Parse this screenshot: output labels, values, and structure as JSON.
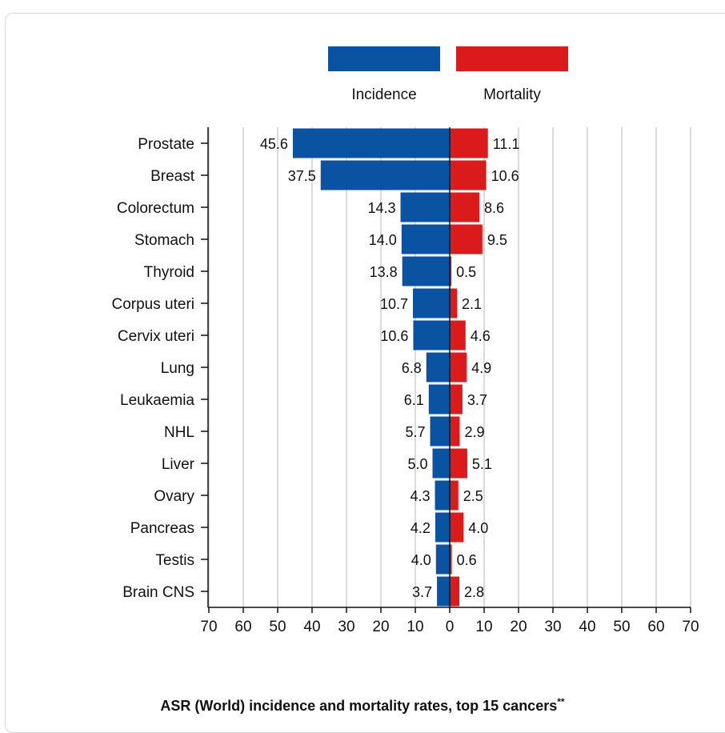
{
  "chart_data": {
    "type": "bar",
    "orientation": "horizontal-diverging",
    "title": "ASR (World) incidence and mortality rates, top 15 cancers",
    "title_suffix": "**",
    "categories": [
      "Prostate",
      "Breast",
      "Colorectum",
      "Stomach",
      "Thyroid",
      "Corpus uteri",
      "Cervix uteri",
      "Lung",
      "Leukaemia",
      "NHL",
      "Liver",
      "Ovary",
      "Pancreas",
      "Testis",
      "Brain CNS"
    ],
    "series": [
      {
        "name": "Incidence",
        "color": "#0a52a2",
        "direction": "left",
        "values": [
          45.6,
          37.5,
          14.3,
          14.0,
          13.8,
          10.7,
          10.6,
          6.8,
          6.1,
          5.7,
          5.0,
          4.3,
          4.2,
          4.0,
          3.7
        ],
        "labels": [
          "45.6",
          "37.5",
          "14.3",
          "14.0",
          "13.8",
          "10.7",
          "10.6",
          "6.8",
          "6.1",
          "5.7",
          "5.0",
          "4.3",
          "4.2",
          "4.0",
          "3.7"
        ]
      },
      {
        "name": "Mortality",
        "color": "#db1b1b",
        "direction": "right",
        "values": [
          11.1,
          10.6,
          8.6,
          9.5,
          0.5,
          2.1,
          4.6,
          4.9,
          3.7,
          2.9,
          5.1,
          2.5,
          4.0,
          0.6,
          2.8
        ],
        "labels": [
          "11.1",
          "10.6",
          "8.6",
          "9.5",
          "0.5",
          "2.1",
          "4.6",
          "4.9",
          "3.7",
          "2.9",
          "5.1",
          "2.5",
          "4.0",
          "0.6",
          "2.8"
        ]
      }
    ],
    "xlim": [
      -70,
      70
    ],
    "ticks": [
      70,
      60,
      50,
      40,
      30,
      20,
      10,
      0,
      10,
      20,
      30,
      40,
      50,
      60,
      70
    ],
    "grid": true,
    "legend_position": "top"
  }
}
